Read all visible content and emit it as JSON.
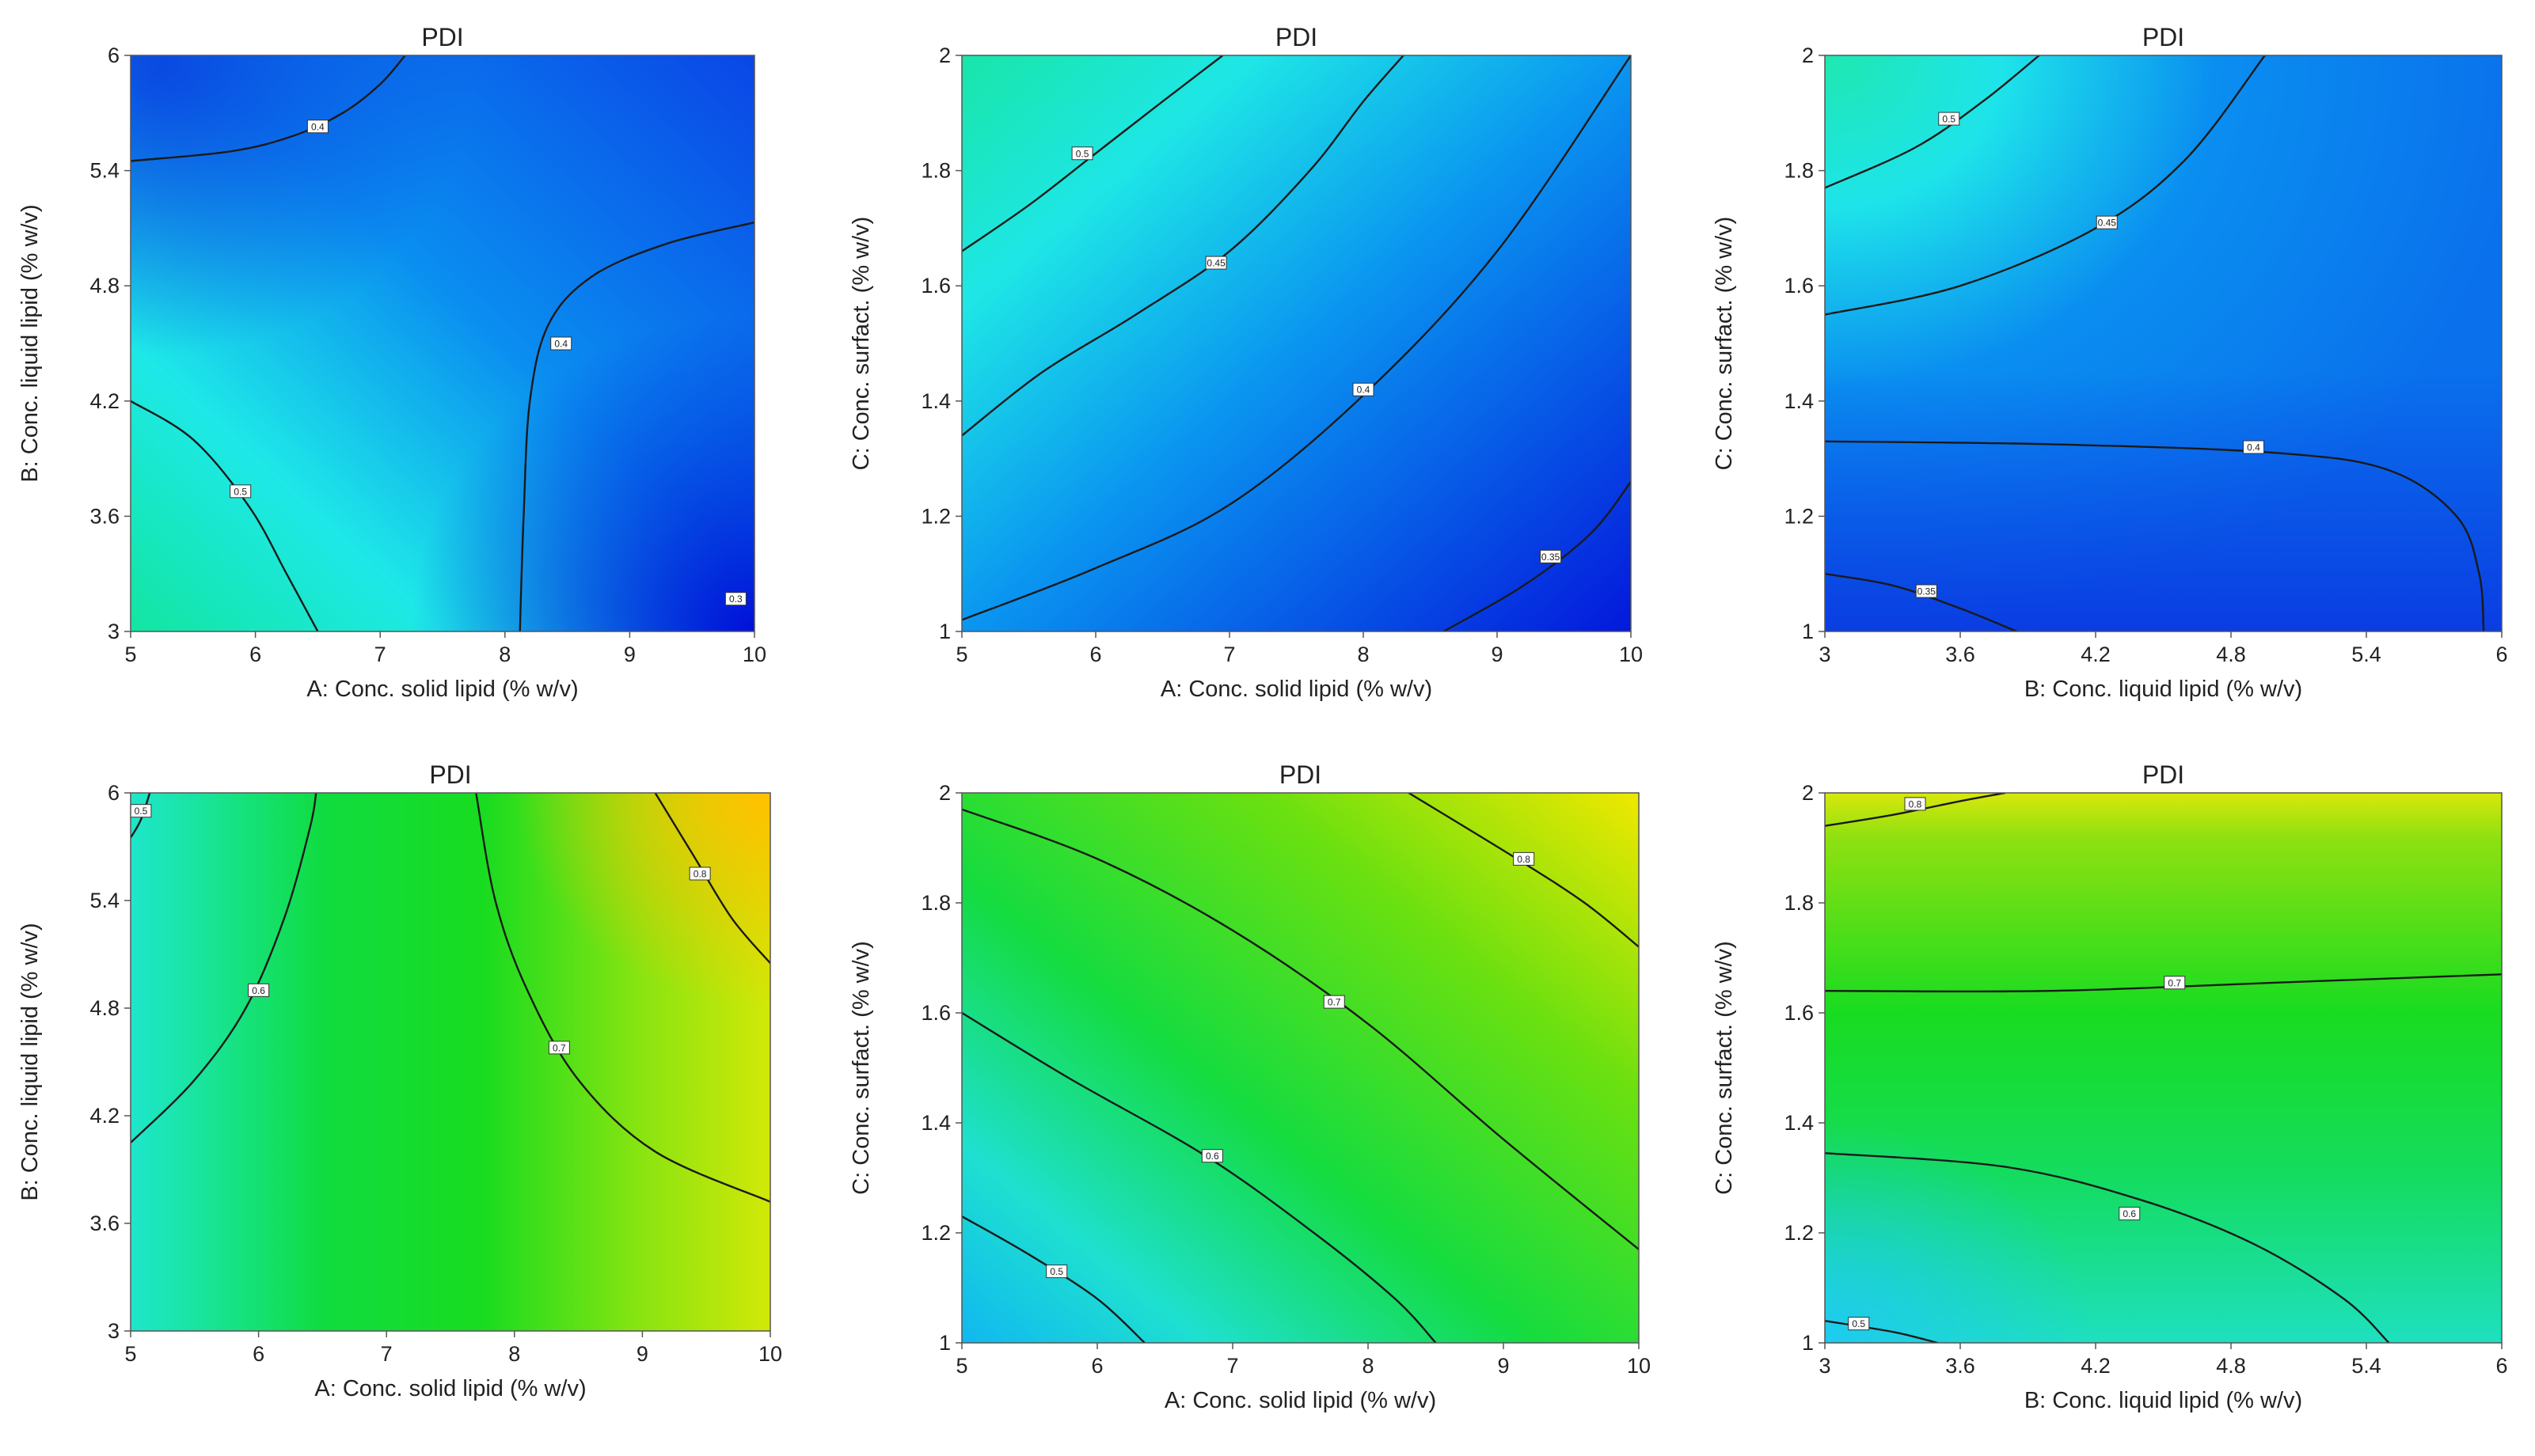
{
  "chart_data": [
    {
      "type": "contour",
      "title": "PDI",
      "xlabel": "A: Conc. solid lipid (% w/v)",
      "ylabel": "B: Conc. liquid lipid  (% w/v)",
      "xlim": [
        5,
        10
      ],
      "ylim": [
        3,
        6
      ],
      "xticks": [
        "5",
        "6",
        "7",
        "8",
        "9",
        "10"
      ],
      "yticks": [
        "3",
        "3.6",
        "4.2",
        "4.8",
        "5.4",
        "6"
      ],
      "contours": [
        {
          "label": "0.4",
          "points": [
            [
              5,
              5.45
            ],
            [
              5.8,
              5.5
            ],
            [
              6.3,
              5.58
            ],
            [
              6.7,
              5.7
            ],
            [
              7.0,
              5.85
            ],
            [
              7.2,
              6.0
            ]
          ],
          "label_at": [
            6.5,
            5.63
          ]
        },
        {
          "label": "0.4",
          "points": [
            [
              8.12,
              3.0
            ],
            [
              8.15,
              3.6
            ],
            [
              8.2,
              4.2
            ],
            [
              8.35,
              4.6
            ],
            [
              8.7,
              4.85
            ],
            [
              9.3,
              5.02
            ],
            [
              10,
              5.13
            ]
          ],
          "label_at": [
            8.45,
            4.5
          ]
        },
        {
          "label": "0.5",
          "points": [
            [
              5,
              4.2
            ],
            [
              5.5,
              4.0
            ],
            [
              5.95,
              3.65
            ],
            [
              6.25,
              3.3
            ],
            [
              6.5,
              3.0
            ]
          ],
          "label_at": [
            5.88,
            3.73
          ]
        }
      ],
      "point_labels": [
        {
          "label": "0.3",
          "at": [
            9.85,
            3.17
          ]
        }
      ]
    },
    {
      "type": "contour",
      "title": "PDI",
      "xlabel": "A: Conc. solid lipid (% w/v)",
      "ylabel": "C: Conc. surfact. (% w/v)",
      "xlim": [
        5,
        10
      ],
      "ylim": [
        1,
        2
      ],
      "xticks": [
        "5",
        "6",
        "7",
        "8",
        "9",
        "10"
      ],
      "yticks": [
        "1",
        "1.2",
        "1.4",
        "1.6",
        "1.8",
        "2"
      ],
      "contours": [
        {
          "label": "0.5",
          "points": [
            [
              5,
              1.66
            ],
            [
              5.5,
              1.74
            ],
            [
              6,
              1.83
            ],
            [
              6.5,
              1.92
            ],
            [
              6.95,
              2.0
            ]
          ],
          "label_at": [
            5.9,
            1.83
          ]
        },
        {
          "label": "0.45",
          "points": [
            [
              5,
              1.34
            ],
            [
              5.6,
              1.45
            ],
            [
              6.3,
              1.55
            ],
            [
              7.0,
              1.66
            ],
            [
              7.6,
              1.8
            ],
            [
              8.0,
              1.92
            ],
            [
              8.3,
              2.0
            ]
          ],
          "label_at": [
            6.9,
            1.64
          ]
        },
        {
          "label": "0.4",
          "points": [
            [
              5,
              1.02
            ],
            [
              6,
              1.11
            ],
            [
              7,
              1.22
            ],
            [
              8,
              1.41
            ],
            [
              9,
              1.66
            ],
            [
              10,
              2.0
            ]
          ],
          "label_at": [
            8.0,
            1.42
          ]
        },
        {
          "label": "0.35",
          "points": [
            [
              8.6,
              1.0
            ],
            [
              9.2,
              1.08
            ],
            [
              9.7,
              1.17
            ],
            [
              10,
              1.26
            ]
          ],
          "label_at": [
            9.4,
            1.13
          ]
        }
      ]
    },
    {
      "type": "contour",
      "title": "PDI",
      "xlabel": "B: Conc. liquid lipid  (% w/v)",
      "ylabel": "C: Conc. surfact. (% w/v)",
      "xlim": [
        3,
        6
      ],
      "ylim": [
        1,
        2
      ],
      "xticks": [
        "3",
        "3.6",
        "4.2",
        "4.8",
        "5.4",
        "6"
      ],
      "yticks": [
        "1",
        "1.2",
        "1.4",
        "1.6",
        "1.8",
        "2"
      ],
      "contours": [
        {
          "label": "0.5",
          "points": [
            [
              3,
              1.77
            ],
            [
              3.4,
              1.84
            ],
            [
              3.7,
              1.92
            ],
            [
              3.95,
              2.0
            ]
          ],
          "label_at": [
            3.55,
            1.89
          ]
        },
        {
          "label": "0.45",
          "points": [
            [
              3,
              1.55
            ],
            [
              3.6,
              1.6
            ],
            [
              4.2,
              1.7
            ],
            [
              4.6,
              1.82
            ],
            [
              4.95,
              2.0
            ]
          ],
          "label_at": [
            4.25,
            1.71
          ]
        },
        {
          "label": "0.4",
          "points": [
            [
              3,
              1.33
            ],
            [
              4,
              1.325
            ],
            [
              5,
              1.31
            ],
            [
              5.5,
              1.28
            ],
            [
              5.8,
              1.2
            ],
            [
              5.9,
              1.1
            ],
            [
              5.92,
              1.0
            ]
          ],
          "label_at": [
            4.9,
            1.32
          ]
        },
        {
          "label": "0.35",
          "points": [
            [
              3,
              1.1
            ],
            [
              3.3,
              1.08
            ],
            [
              3.6,
              1.04
            ],
            [
              3.85,
              1.0
            ]
          ],
          "label_at": [
            3.45,
            1.07
          ]
        }
      ]
    },
    {
      "type": "contour",
      "title": "PDI",
      "xlabel": "A: Conc. solid lipid (% w/v)",
      "ylabel": "B: Conc. liquid lipid  (% w/v)",
      "xlim": [
        5,
        10
      ],
      "ylim": [
        3,
        6
      ],
      "xticks": [
        "5",
        "6",
        "7",
        "8",
        "9",
        "10"
      ],
      "yticks": [
        "3",
        "3.6",
        "4.2",
        "4.8",
        "5.4",
        "6"
      ],
      "contours": [
        {
          "label": "0.5",
          "points": [
            [
              5,
              5.75
            ],
            [
              5.08,
              5.85
            ],
            [
              5.15,
              6.0
            ]
          ],
          "label_at": [
            5.08,
            5.9
          ]
        },
        {
          "label": "0.6",
          "points": [
            [
              5,
              4.05
            ],
            [
              5.5,
              4.4
            ],
            [
              5.9,
              4.8
            ],
            [
              6.2,
              5.3
            ],
            [
              6.4,
              5.8
            ],
            [
              6.45,
              6.0
            ]
          ],
          "label_at": [
            6.0,
            4.9
          ]
        },
        {
          "label": "0.7",
          "points": [
            [
              7.7,
              6.0
            ],
            [
              7.85,
              5.4
            ],
            [
              8.1,
              4.9
            ],
            [
              8.5,
              4.4
            ],
            [
              9.1,
              4.0
            ],
            [
              10,
              3.72
            ]
          ],
          "label_at": [
            8.35,
            4.58
          ]
        },
        {
          "label": "0.8",
          "points": [
            [
              9.1,
              6.0
            ],
            [
              9.4,
              5.65
            ],
            [
              9.7,
              5.3
            ],
            [
              10,
              5.05
            ]
          ],
          "label_at": [
            9.45,
            5.55
          ]
        }
      ]
    },
    {
      "type": "contour",
      "title": "PDI",
      "xlabel": "A: Conc. solid lipid (% w/v)",
      "ylabel": "C: Conc. surfact. (% w/v)",
      "xlim": [
        5,
        10
      ],
      "ylim": [
        1,
        2
      ],
      "xticks": [
        "5",
        "6",
        "7",
        "8",
        "9",
        "10"
      ],
      "yticks": [
        "1",
        "1.2",
        "1.4",
        "1.6",
        "1.8",
        "2"
      ],
      "contours": [
        {
          "label": "0.5",
          "points": [
            [
              5,
              1.23
            ],
            [
              5.5,
              1.16
            ],
            [
              6.0,
              1.08
            ],
            [
              6.35,
              1.0
            ]
          ],
          "label_at": [
            5.7,
            1.13
          ]
        },
        {
          "label": "0.6",
          "points": [
            [
              5,
              1.6
            ],
            [
              5.8,
              1.48
            ],
            [
              6.8,
              1.34
            ],
            [
              7.6,
              1.2
            ],
            [
              8.2,
              1.08
            ],
            [
              8.5,
              1.0
            ]
          ],
          "label_at": [
            6.85,
            1.34
          ]
        },
        {
          "label": "0.7",
          "points": [
            [
              5,
              1.97
            ],
            [
              6,
              1.88
            ],
            [
              7,
              1.75
            ],
            [
              8,
              1.58
            ],
            [
              9,
              1.37
            ],
            [
              10,
              1.17
            ]
          ],
          "label_at": [
            7.75,
            1.62
          ]
        },
        {
          "label": "0.8",
          "points": [
            [
              8.3,
              2.0
            ],
            [
              9.1,
              1.88
            ],
            [
              9.6,
              1.8
            ],
            [
              10,
              1.72
            ]
          ],
          "label_at": [
            9.15,
            1.88
          ]
        }
      ]
    },
    {
      "type": "contour",
      "title": "PDI",
      "xlabel": "B: Conc. liquid lipid  (% w/v)",
      "ylabel": "C: Conc. surfact. (% w/v)",
      "xlim": [
        3,
        6
      ],
      "ylim": [
        1,
        2
      ],
      "xticks": [
        "3",
        "3.6",
        "4.2",
        "4.8",
        "5.4",
        "6"
      ],
      "yticks": [
        "1",
        "1.2",
        "1.4",
        "1.6",
        "1.8",
        "2"
      ],
      "contours": [
        {
          "label": "0.8",
          "points": [
            [
              3,
              1.94
            ],
            [
              3.3,
              1.96
            ],
            [
              3.6,
              1.985
            ],
            [
              3.8,
              2.0
            ]
          ],
          "label_at": [
            3.4,
            1.98
          ]
        },
        {
          "label": "0.7",
          "points": [
            [
              3,
              1.64
            ],
            [
              4,
              1.64
            ],
            [
              5,
              1.655
            ],
            [
              6,
              1.67
            ]
          ],
          "label_at": [
            4.55,
            1.655
          ]
        },
        {
          "label": "0.6",
          "points": [
            [
              3,
              1.345
            ],
            [
              3.8,
              1.32
            ],
            [
              4.4,
              1.26
            ],
            [
              4.9,
              1.18
            ],
            [
              5.3,
              1.08
            ],
            [
              5.5,
              1.0
            ]
          ],
          "label_at": [
            4.35,
            1.235
          ]
        },
        {
          "label": "0.5",
          "points": [
            [
              3,
              1.04
            ],
            [
              3.3,
              1.02
            ],
            [
              3.5,
              1.0
            ]
          ],
          "label_at": [
            3.15,
            1.035
          ]
        }
      ]
    }
  ]
}
